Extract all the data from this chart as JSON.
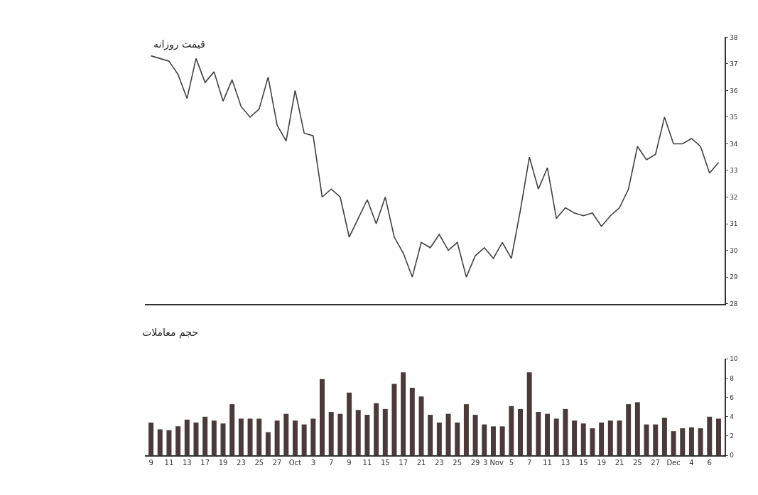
{
  "chart_data": [
    {
      "type": "line",
      "title": "قیمت روزانه",
      "categories": [
        null,
        null,
        null,
        null,
        null,
        null,
        null,
        null,
        null,
        null,
        null,
        null,
        null,
        null,
        null,
        null,
        null,
        null,
        null,
        null,
        null,
        null,
        null,
        null,
        null,
        null,
        null,
        null,
        null,
        null,
        null,
        null,
        null,
        null,
        null,
        null,
        null,
        null,
        null,
        null,
        null,
        null,
        null,
        null,
        null,
        null,
        null,
        null,
        null,
        null,
        null,
        null,
        null,
        null,
        null,
        null,
        null,
        null,
        null,
        null,
        null,
        null,
        null,
        null
      ],
      "series": [
        {
          "color": "#404040",
          "values": [
            37.3,
            37.2,
            37.1,
            36.6,
            35.7,
            37.2,
            36.3,
            36.7,
            35.6,
            36.4,
            35.4,
            35.0,
            35.3,
            36.5,
            34.7,
            34.1,
            36.0,
            34.4,
            34.3,
            32.0,
            32.3,
            32.0,
            30.5,
            31.2,
            31.9,
            31.0,
            32.0,
            30.5,
            29.9,
            29.0,
            30.3,
            30.1,
            30.6,
            30.0,
            30.3,
            29.0,
            29.8,
            30.1,
            29.7,
            30.3,
            29.7,
            31.5,
            33.5,
            32.3,
            33.1,
            31.2,
            31.6,
            31.4,
            31.3,
            31.4,
            30.9,
            31.3,
            31.6,
            32.3,
            33.9,
            33.4,
            33.6,
            35.0,
            34.0,
            34.0,
            34.2,
            33.9,
            32.9,
            33.3
          ]
        }
      ],
      "ylim": [
        28,
        38
      ],
      "yticks": [
        28,
        29,
        30,
        31,
        32,
        33,
        34,
        35,
        36,
        37,
        38
      ],
      "tick_labels": "y",
      "marker": "none",
      "line_style": "solid"
    },
    {
      "type": "bar",
      "title": "حجم معاملات",
      "categories": [
        "9",
        null,
        "11",
        null,
        "13",
        null,
        "17",
        null,
        "19",
        null,
        "23",
        null,
        "25",
        null,
        "27",
        null,
        "Oct",
        null,
        "3",
        null,
        "7",
        null,
        "9",
        null,
        "11",
        null,
        "15",
        null,
        "17",
        null,
        "21",
        null,
        "23",
        null,
        "25",
        null,
        "29",
        null,
        "3 Nov",
        null,
        "5",
        null,
        "7",
        null,
        "11",
        null,
        "13",
        null,
        "15",
        null,
        "19",
        null,
        "21",
        null,
        "25",
        null,
        "27",
        null,
        "Dec",
        null,
        "4",
        null,
        "6",
        null
      ],
      "series": [
        {
          "color": "#4a3a3a",
          "values": [
            3.4,
            2.7,
            2.6,
            3.0,
            3.7,
            3.4,
            4.0,
            3.6,
            3.3,
            5.3,
            3.8,
            3.8,
            3.8,
            2.4,
            3.6,
            4.3,
            3.6,
            3.2,
            3.8,
            7.9,
            4.5,
            4.3,
            6.5,
            4.7,
            4.2,
            5.4,
            4.8,
            7.4,
            8.6,
            7.0,
            6.1,
            4.2,
            3.4,
            4.3,
            3.4,
            5.3,
            4.2,
            3.2,
            3.0,
            3.0,
            5.1,
            4.8,
            8.6,
            4.5,
            4.3,
            3.8,
            4.8,
            3.6,
            3.3,
            2.8,
            3.4,
            3.6,
            3.6,
            5.3,
            5.5,
            3.2,
            3.2,
            3.9,
            2.5,
            2.8,
            2.9,
            2.8,
            4.0,
            3.8
          ]
        }
      ],
      "ylim": [
        0,
        10
      ],
      "yticks": [
        0,
        2,
        4,
        6,
        8,
        10
      ]
    }
  ]
}
